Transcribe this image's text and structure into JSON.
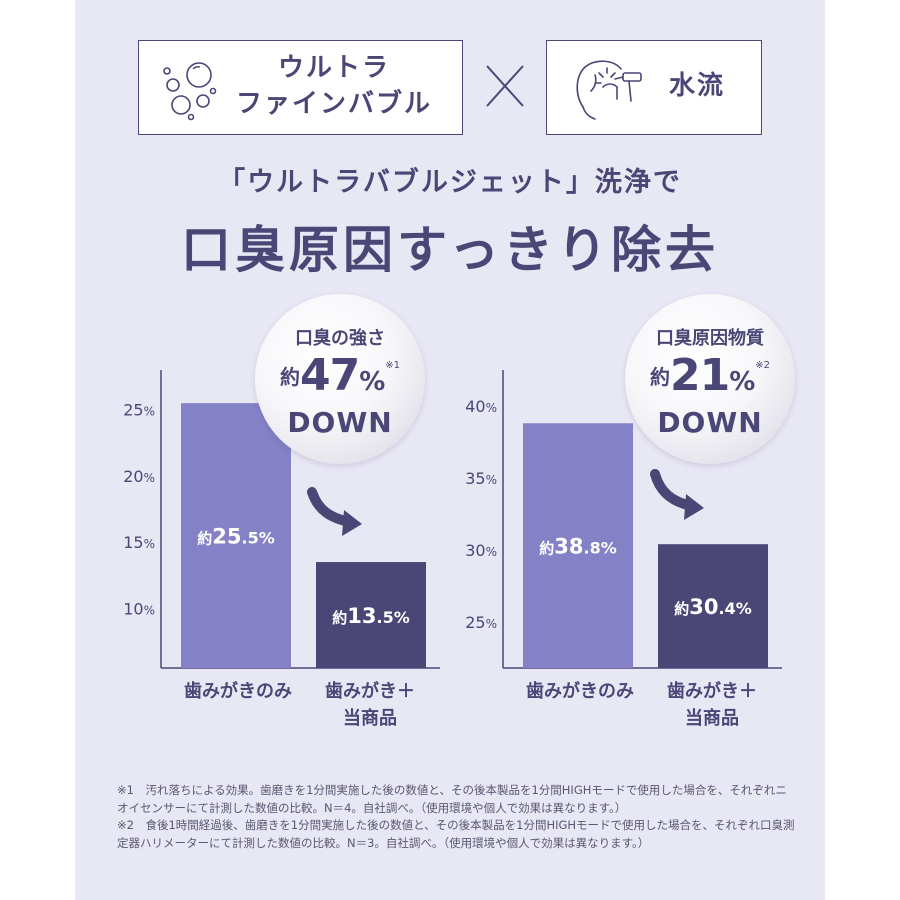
{
  "header": {
    "bubble_box": {
      "line1": "ウルトラ",
      "line2": "ファインバブル",
      "icon": "bubbles-icon"
    },
    "times_symbol": "times-icon",
    "water_box": {
      "label": "水流",
      "icon": "mouth-water-jet-icon"
    }
  },
  "subtitle": "「ウルトラバブルジェット」洗浄で",
  "title": "口臭原因すっきり除去",
  "charts": [
    {
      "badge": {
        "label": "口臭の強さ",
        "about": "約",
        "num": "47",
        "pct": "%",
        "note": "※1",
        "down": "DOWN"
      },
      "bar_labels": [
        {
          "about": "約",
          "int": "25",
          "dec": ".5",
          "pct": "%"
        },
        {
          "about": "約",
          "int": "13",
          "dec": ".5",
          "pct": "%"
        }
      ]
    },
    {
      "badge": {
        "label": "口臭原因物質",
        "about": "約",
        "num": "21",
        "pct": "%",
        "note": "※2",
        "down": "DOWN"
      },
      "bar_labels": [
        {
          "about": "約",
          "int": "38",
          "dec": ".8",
          "pct": "%"
        },
        {
          "about": "約",
          "int": "30",
          "dec": ".4",
          "pct": "%"
        }
      ]
    }
  ],
  "chart_data": [
    {
      "type": "bar",
      "title": "口臭の強さ",
      "categories": [
        "歯みがきのみ",
        "歯みがき＋当商品"
      ],
      "category_lines": [
        [
          "歯みがきのみ"
        ],
        [
          "歯みがき＋",
          "当商品"
        ]
      ],
      "values": [
        25.5,
        13.5
      ],
      "ylim": [
        5.5,
        28
      ],
      "yticks": [
        10,
        15,
        20,
        25
      ],
      "ytick_labels": [
        {
          "num": "10",
          "pct": "%"
        },
        {
          "num": "15",
          "pct": "%"
        },
        {
          "num": "20",
          "pct": "%"
        },
        {
          "num": "25",
          "pct": "%"
        }
      ],
      "bar_colors": [
        "#8481c6",
        "#4a4777"
      ],
      "annotation": "約47% DOWN"
    },
    {
      "type": "bar",
      "title": "口臭原因物質",
      "categories": [
        "歯みがきのみ",
        "歯みがき＋当商品"
      ],
      "category_lines": [
        [
          "歯みがきのみ"
        ],
        [
          "歯みがき＋",
          "当商品"
        ]
      ],
      "values": [
        38.8,
        30.4
      ],
      "ylim": [
        21.8,
        42.5
      ],
      "yticks": [
        25,
        30,
        35,
        40
      ],
      "ytick_labels": [
        {
          "num": "25",
          "pct": "%"
        },
        {
          "num": "30",
          "pct": "%"
        },
        {
          "num": "35",
          "pct": "%"
        },
        {
          "num": "40",
          "pct": "%"
        }
      ],
      "bar_colors": [
        "#8481c6",
        "#4a4777"
      ],
      "annotation": "約21% DOWN"
    }
  ],
  "footnotes": [
    "※1　汚れ落ちによる効果。歯磨きを1分間実施した後の数値と、その後本製品を1分間HIGHモードで使用した場合を、それぞれニオイセンサーにて計測した数値の比較。N＝4。自社調べ。（使用環境や個人で効果は異なります。）",
    "※2　食後1時間経過後、歯磨きを1分間実施した後の数値と、その後本製品を1分間HIGHモードで使用した場合を、それぞれ口臭測定器ハリメーターにて計測した数値の比較。N＝3。自社調べ。（使用環境や個人で効果は異なります。）"
  ],
  "colors": {
    "navy": "#4a4777",
    "light_bar": "#8481c6",
    "panel_bg": "#e8e7f4"
  }
}
